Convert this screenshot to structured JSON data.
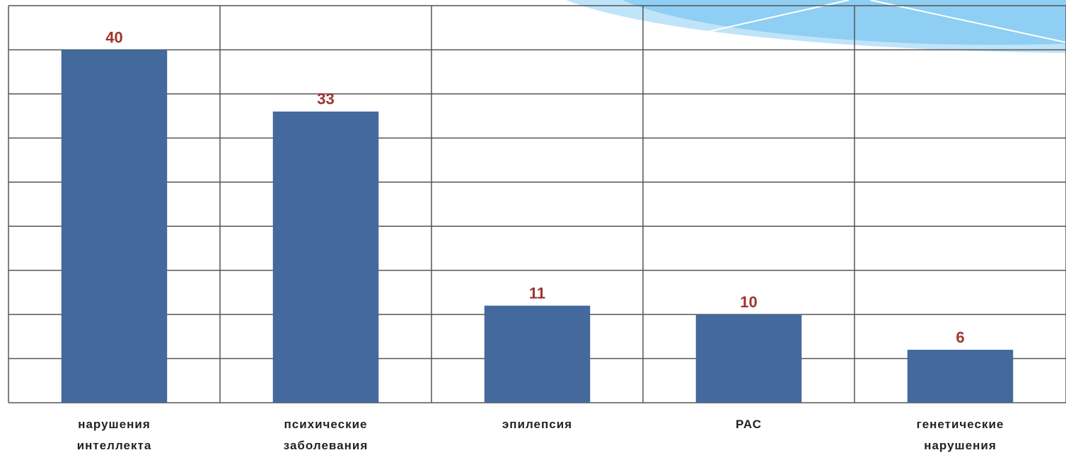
{
  "chart_data": {
    "type": "bar",
    "categories": [
      "нарушения интеллекта",
      "психические заболевания",
      "эпилепсия",
      "РАС",
      "генетические нарушения"
    ],
    "values": [
      40,
      33,
      11,
      10,
      6
    ],
    "color": "#44699c",
    "value_label_color": "#a03430",
    "ylim": [
      0,
      45
    ],
    "yticks": [
      0,
      5,
      10,
      15,
      20,
      25,
      30,
      35,
      40,
      45
    ],
    "grid": true
  }
}
